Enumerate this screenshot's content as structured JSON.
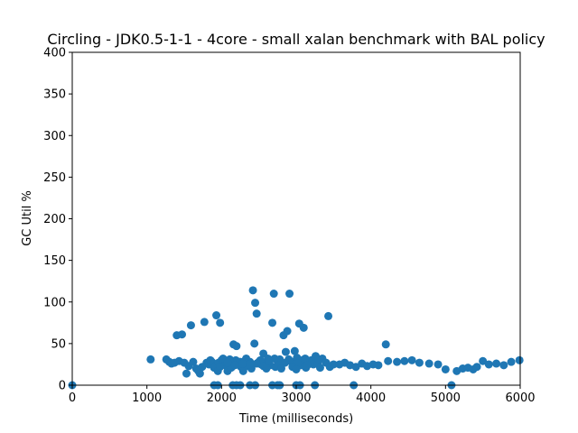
{
  "chart_data": {
    "type": "scatter",
    "title": "Circling - JDK0.5-1-1 - 4core -  small xalan benchmark with BAL policy",
    "xlabel": "Time (milliseconds)",
    "ylabel": "GC Util %",
    "xlim": [
      0,
      6000
    ],
    "ylim": [
      0,
      400
    ],
    "xticks": [
      "0",
      "1000",
      "2000",
      "3000",
      "4000",
      "5000",
      "6000"
    ],
    "yticks": [
      "0",
      "50",
      "100",
      "150",
      "200",
      "250",
      "300",
      "350",
      "400"
    ],
    "grid": false,
    "marker_color": "#1f77b4",
    "points": [
      [
        0,
        0
      ],
      [
        1050,
        31
      ],
      [
        1260,
        31
      ],
      [
        1300,
        28
      ],
      [
        1330,
        26
      ],
      [
        1370,
        27
      ],
      [
        1400,
        60
      ],
      [
        1430,
        29
      ],
      [
        1470,
        61
      ],
      [
        1500,
        27
      ],
      [
        1530,
        14
      ],
      [
        1560,
        23
      ],
      [
        1590,
        72
      ],
      [
        1620,
        28
      ],
      [
        1660,
        20
      ],
      [
        1690,
        17
      ],
      [
        1710,
        14
      ],
      [
        1740,
        22
      ],
      [
        1770,
        76
      ],
      [
        1800,
        27
      ],
      [
        1830,
        25
      ],
      [
        1870,
        28
      ],
      [
        1900,
        21
      ],
      [
        1930,
        84
      ],
      [
        1960,
        27
      ],
      [
        1980,
        75
      ],
      [
        1950,
        17
      ],
      [
        2000,
        30
      ],
      [
        2030,
        28
      ],
      [
        2050,
        24
      ],
      [
        2080,
        17
      ],
      [
        2100,
        25
      ],
      [
        2130,
        21
      ],
      [
        2160,
        49
      ],
      [
        2190,
        30
      ],
      [
        2200,
        47
      ],
      [
        2230,
        25
      ],
      [
        2260,
        22
      ],
      [
        2290,
        17
      ],
      [
        2320,
        30
      ],
      [
        2350,
        23
      ],
      [
        2380,
        28
      ],
      [
        2400,
        20
      ],
      [
        2420,
        114
      ],
      [
        2440,
        50
      ],
      [
        2450,
        99
      ],
      [
        2470,
        86
      ],
      [
        2500,
        28
      ],
      [
        2530,
        25
      ],
      [
        2560,
        38
      ],
      [
        2590,
        27
      ],
      [
        2620,
        32
      ],
      [
        2650,
        24
      ],
      [
        2680,
        75
      ],
      [
        2700,
        110
      ],
      [
        2720,
        22
      ],
      [
        2750,
        29
      ],
      [
        2780,
        31
      ],
      [
        2800,
        27
      ],
      [
        2830,
        60
      ],
      [
        2860,
        40
      ],
      [
        2880,
        65
      ],
      [
        2910,
        110
      ],
      [
        2940,
        28
      ],
      [
        2960,
        25
      ],
      [
        2980,
        41
      ],
      [
        3010,
        33
      ],
      [
        3040,
        74
      ],
      [
        3060,
        24
      ],
      [
        3080,
        30
      ],
      [
        3100,
        69
      ],
      [
        3130,
        21
      ],
      [
        3160,
        28
      ],
      [
        3200,
        30
      ],
      [
        3230,
        25
      ],
      [
        3260,
        35
      ],
      [
        3290,
        26
      ],
      [
        3320,
        21
      ],
      [
        3350,
        32
      ],
      [
        3400,
        27
      ],
      [
        3430,
        83
      ],
      [
        3450,
        22
      ],
      [
        3500,
        25
      ],
      [
        3580,
        25
      ],
      [
        3650,
        27
      ],
      [
        3720,
        24
      ],
      [
        3800,
        22
      ],
      [
        3880,
        26
      ],
      [
        3950,
        23
      ],
      [
        4030,
        25
      ],
      [
        4100,
        24
      ],
      [
        4200,
        49
      ],
      [
        4230,
        29
      ],
      [
        4350,
        28
      ],
      [
        4450,
        29
      ],
      [
        4550,
        30
      ],
      [
        4650,
        27
      ],
      [
        4780,
        26
      ],
      [
        4900,
        25
      ],
      [
        5000,
        19
      ],
      [
        5080,
        0
      ],
      [
        5150,
        17
      ],
      [
        5230,
        20
      ],
      [
        5300,
        21
      ],
      [
        5370,
        19
      ],
      [
        5420,
        22
      ],
      [
        5500,
        29
      ],
      [
        5580,
        25
      ],
      [
        5680,
        26
      ],
      [
        5780,
        24
      ],
      [
        5880,
        28
      ],
      [
        5990,
        30
      ],
      [
        1900,
        0
      ],
      [
        1950,
        0
      ],
      [
        2150,
        0
      ],
      [
        2200,
        0
      ],
      [
        2250,
        0
      ],
      [
        2380,
        0
      ],
      [
        2450,
        0
      ],
      [
        2680,
        0
      ],
      [
        2750,
        0
      ],
      [
        2780,
        0
      ],
      [
        3000,
        0
      ],
      [
        3050,
        0
      ],
      [
        3250,
        0
      ],
      [
        3770,
        0
      ],
      [
        1850,
        30
      ],
      [
        2020,
        32
      ],
      [
        2110,
        31
      ],
      [
        2330,
        32
      ],
      [
        2520,
        30
      ],
      [
        2710,
        32
      ],
      [
        2900,
        31
      ],
      [
        3120,
        32
      ],
      [
        3300,
        31
      ],
      [
        2250,
        28
      ],
      [
        2470,
        26
      ],
      [
        2640,
        29
      ],
      [
        2850,
        27
      ],
      [
        3020,
        26
      ],
      [
        1980,
        22
      ],
      [
        2180,
        24
      ],
      [
        2370,
        25
      ],
      [
        2560,
        23
      ],
      [
        2760,
        24
      ],
      [
        2950,
        22
      ],
      [
        3150,
        24
      ],
      [
        2080,
        27
      ],
      [
        2280,
        26
      ],
      [
        2600,
        20
      ],
      [
        2800,
        20
      ],
      [
        3000,
        19
      ]
    ]
  }
}
